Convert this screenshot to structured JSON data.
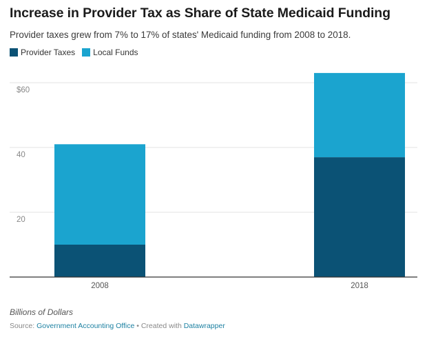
{
  "header": {
    "title": "Increase in Provider Tax as Share of State Medicaid Funding",
    "subtitle": "Provider taxes grew from 7% to 17% of states' Medicaid funding from 2008 to 2018."
  },
  "footer": {
    "axis_note": "Billions of Dollars",
    "source_prefix": "Source: ",
    "source_name": "Government Accounting Office",
    "created_with_prefix": " • Created with ",
    "created_with_name": "Datawrapper"
  },
  "colors": {
    "provider_taxes": "#0b5275",
    "local_funds": "#1ba4cf",
    "grid": "#e3e3e3",
    "axis": "#333333",
    "tick_text": "#888888"
  },
  "chart_data": {
    "type": "bar",
    "stacked": true,
    "categories": [
      "2008",
      "2018"
    ],
    "series": [
      {
        "name": "Provider Taxes",
        "values": [
          10,
          37
        ]
      },
      {
        "name": "Local Funds",
        "values": [
          31,
          26
        ]
      }
    ],
    "ylim": [
      0,
      60
    ],
    "yticks": [
      {
        "value": 20,
        "label": "20"
      },
      {
        "value": 40,
        "label": "40"
      },
      {
        "value": 60,
        "label": "$60"
      }
    ],
    "grid": true,
    "legend": "top-left"
  }
}
